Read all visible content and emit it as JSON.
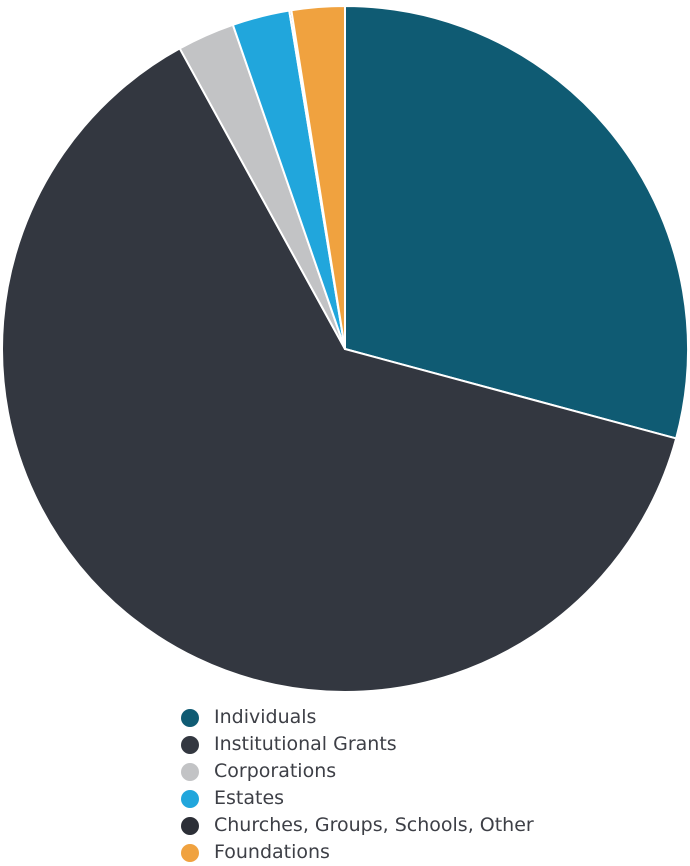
{
  "chart_data": {
    "type": "pie",
    "title": "",
    "start_angle_deg": 0,
    "direction": "clockwise",
    "legend_position": "bottom",
    "slices": [
      {
        "label": "Individuals",
        "value": 29.2,
        "color": "#0f5b73"
      },
      {
        "label": "Institutional Grants",
        "value": 62.8,
        "color": "#333740"
      },
      {
        "label": "Corporations",
        "value": 2.7,
        "color": "#c2c3c5"
      },
      {
        "label": "Estates",
        "value": 2.7,
        "color": "#21a6dc"
      },
      {
        "label": "Churches, Groups, Schools, Other",
        "value": 0.1,
        "color": "#2c2f37"
      },
      {
        "label": "Foundations",
        "value": 2.5,
        "color": "#f0a23f"
      }
    ]
  }
}
